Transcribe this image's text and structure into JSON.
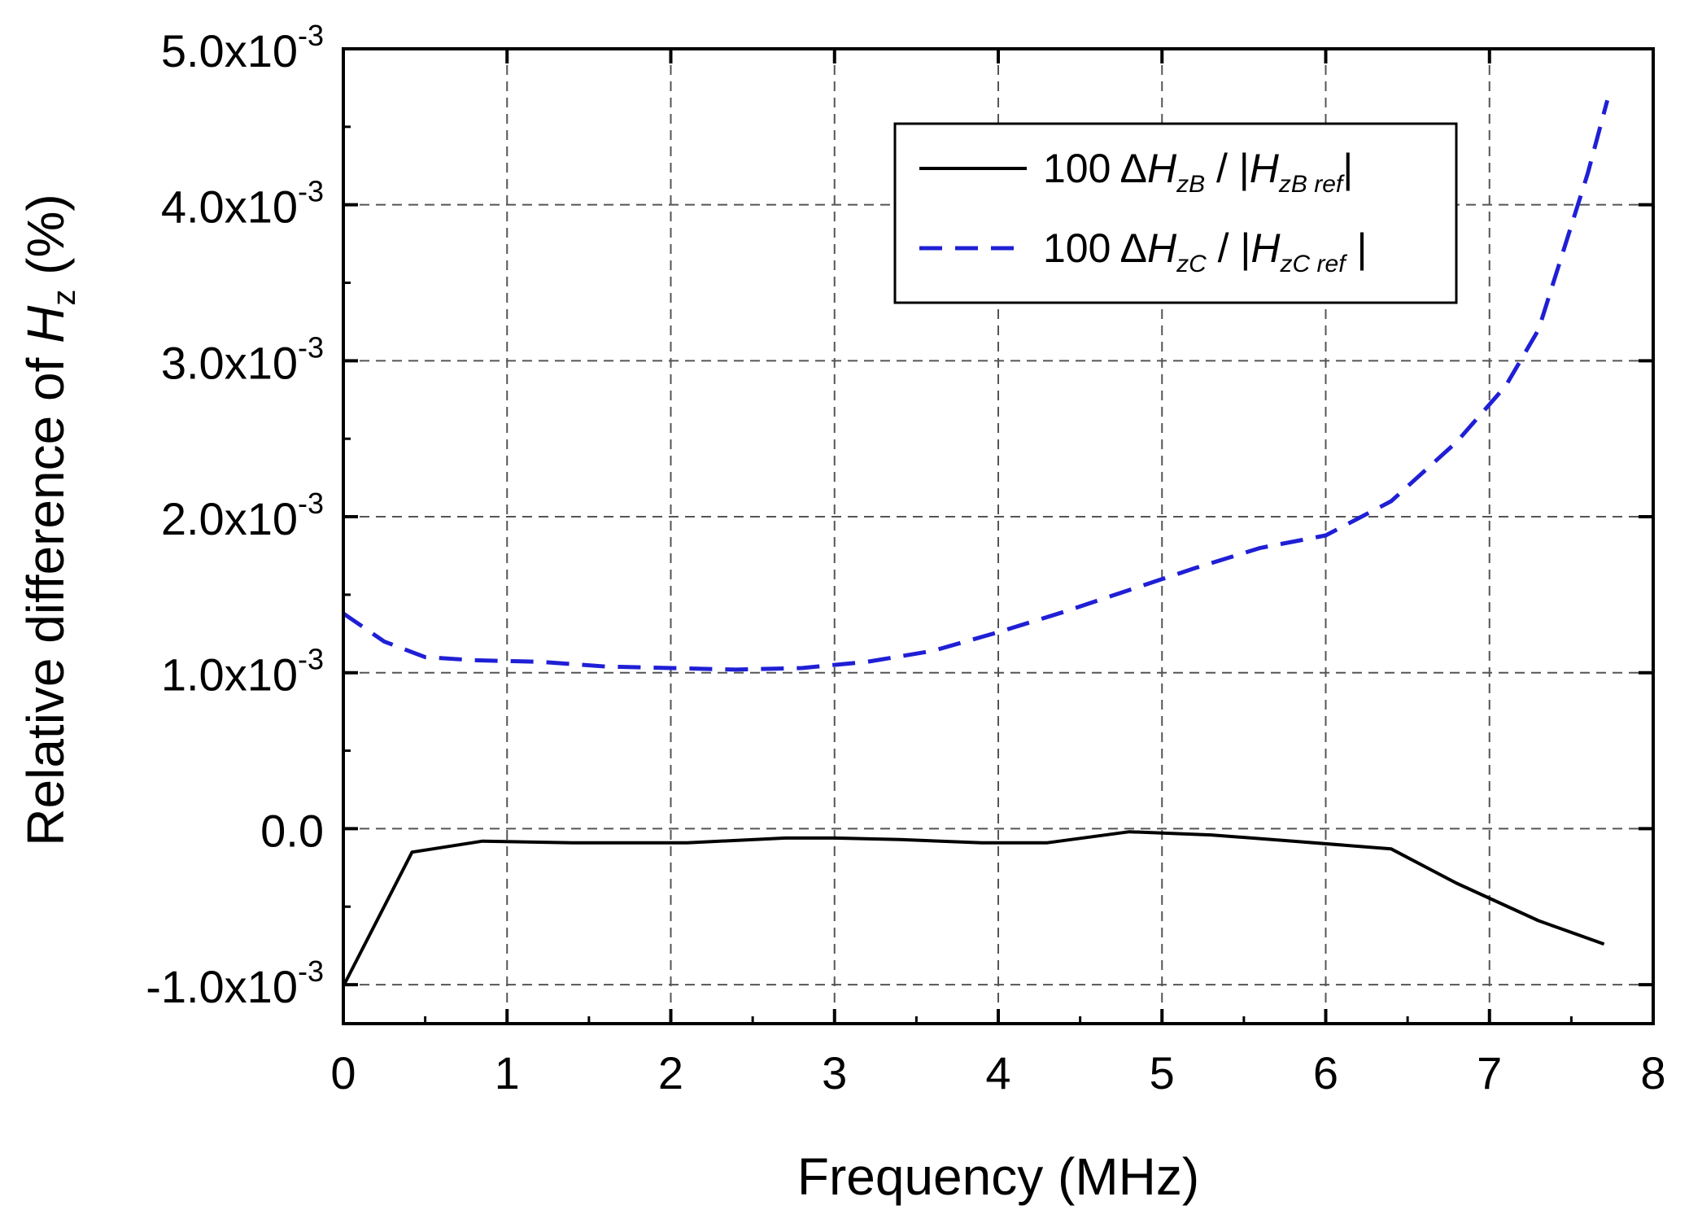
{
  "chart_data": {
    "type": "line",
    "xlabel": "Frequency (MHz)",
    "ylabel": {
      "prefix": "Relative difference of ",
      "symbol": "H",
      "subscript": "z",
      "suffix": " (%)"
    },
    "xlim": [
      0,
      8
    ],
    "ylim": [
      -0.00125,
      0.005
    ],
    "grid": true,
    "legend_position": "top-right",
    "x_ticks": [
      {
        "value": 0,
        "label": "0"
      },
      {
        "value": 1,
        "label": "1"
      },
      {
        "value": 2,
        "label": "2"
      },
      {
        "value": 3,
        "label": "3"
      },
      {
        "value": 4,
        "label": "4"
      },
      {
        "value": 5,
        "label": "5"
      },
      {
        "value": 6,
        "label": "6"
      },
      {
        "value": 7,
        "label": "7"
      },
      {
        "value": 8,
        "label": "8"
      }
    ],
    "y_ticks": [
      {
        "value": -0.001,
        "mantissa": "-1.0x10",
        "exponent": "-3"
      },
      {
        "value": 0.0,
        "mantissa": "0.0",
        "exponent": ""
      },
      {
        "value": 0.001,
        "mantissa": "1.0x10",
        "exponent": "-3"
      },
      {
        "value": 0.002,
        "mantissa": "2.0x10",
        "exponent": "-3"
      },
      {
        "value": 0.003,
        "mantissa": "3.0x10",
        "exponent": "-3"
      },
      {
        "value": 0.004,
        "mantissa": "4.0x10",
        "exponent": "-3"
      },
      {
        "value": 0.005,
        "mantissa": "5.0x10",
        "exponent": "-3"
      }
    ],
    "series": [
      {
        "name": "100 ΔHzB / |HzB ref|",
        "legend": {
          "coef": "100 Δ",
          "H": "H",
          "sub": "zB",
          "sep": " / |",
          "H2": "H",
          "sub2": "zB ref",
          "end": "|"
        },
        "color": "#000000",
        "dash": "solid",
        "x": [
          0.0,
          0.42,
          0.85,
          1.4,
          2.1,
          2.7,
          3.0,
          3.4,
          3.9,
          4.3,
          4.8,
          5.3,
          5.8,
          6.4,
          6.8,
          7.3,
          7.7
        ],
        "y": [
          -0.00101,
          -0.00015,
          -8e-05,
          -9e-05,
          -9e-05,
          -6e-05,
          -6e-05,
          -7e-05,
          -9e-05,
          -9e-05,
          -2e-05,
          -4e-05,
          -8e-05,
          -0.00013,
          -0.00035,
          -0.00059,
          -0.00074
        ]
      },
      {
        "name": "100 ΔHzC / |HzC ref|",
        "legend": {
          "coef": "100 Δ",
          "H": "H",
          "sub": "zC",
          "sep": "  / |",
          "H2": "H",
          "sub2": "zC ref",
          "end": " |"
        },
        "color": "#1f1fd6",
        "dash": "dashed",
        "x": [
          0.0,
          0.25,
          0.5,
          0.8,
          1.2,
          1.6,
          2.0,
          2.4,
          2.8,
          3.2,
          3.6,
          4.0,
          4.4,
          4.8,
          5.2,
          5.6,
          6.0,
          6.4,
          6.8,
          7.1,
          7.3,
          7.45,
          7.6,
          7.72
        ],
        "y": [
          0.00138,
          0.0012,
          0.0011,
          0.00108,
          0.00107,
          0.00104,
          0.00103,
          0.00102,
          0.00103,
          0.00107,
          0.00114,
          0.00126,
          0.00139,
          0.00153,
          0.00167,
          0.0018,
          0.00188,
          0.0021,
          0.00248,
          0.00284,
          0.0032,
          0.0037,
          0.0042,
          0.00467
        ]
      }
    ]
  }
}
